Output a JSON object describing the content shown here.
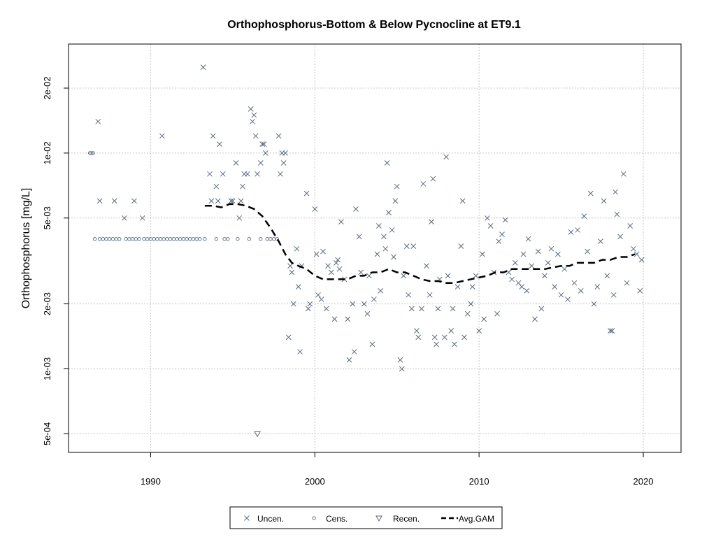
{
  "chart_data": {
    "type": "scatter",
    "title": "Orthophosphorus-Bottom & Below Pycnocline at ET9.1",
    "xlabel": "",
    "ylabel": "Orthophosphorus [mg/L]",
    "x_range": [
      1985,
      2022.3
    ],
    "y_range": [
      0.00041,
      0.032
    ],
    "y_scale": "log",
    "grid": true,
    "x_ticks": [
      1990,
      2000,
      2010,
      2020
    ],
    "x_tick_labels": [
      "1990",
      "2000",
      "2010",
      "2020"
    ],
    "y_ticks": [
      0.0005,
      0.001,
      0.002,
      0.005,
      0.01,
      0.02
    ],
    "y_tick_labels": [
      "5e-04",
      "1e-03",
      "2e-03",
      "5e-03",
      "1e-02",
      "2e-02"
    ],
    "legend_position": "bottom-center",
    "legend": [
      {
        "label": "Uncen.",
        "marker": "x"
      },
      {
        "label": "Cens.",
        "marker": "circle"
      },
      {
        "label": "Recen.",
        "marker": "triangle-down"
      },
      {
        "label": "Avg.GAM",
        "marker": "dashed-line"
      }
    ],
    "colors": {
      "points": "#5a6a80",
      "gam": "#000000",
      "grid": "#c8c8c8"
    },
    "series": [
      {
        "name": "Uncen.",
        "marker": "x",
        "points": [
          [
            1986.8,
            0.014
          ],
          [
            1986.9,
            0.006
          ],
          [
            1987.8,
            0.006
          ],
          [
            1988.4,
            0.005
          ],
          [
            1989.0,
            0.006
          ],
          [
            1989.5,
            0.005
          ],
          [
            1990.7,
            0.012
          ],
          [
            1993.2,
            0.025
          ],
          [
            1993.6,
            0.008
          ],
          [
            1993.7,
            0.006
          ],
          [
            1993.8,
            0.012
          ],
          [
            1994.0,
            0.007
          ],
          [
            1994.1,
            0.006
          ],
          [
            1994.2,
            0.011
          ],
          [
            1994.4,
            0.008
          ],
          [
            1994.9,
            0.006
          ],
          [
            1995.0,
            0.006
          ],
          [
            1995.2,
            0.009
          ],
          [
            1995.4,
            0.005
          ],
          [
            1995.5,
            0.006
          ],
          [
            1995.6,
            0.007
          ],
          [
            1995.7,
            0.008
          ],
          [
            1995.9,
            0.008
          ],
          [
            1996.1,
            0.016
          ],
          [
            1996.2,
            0.014
          ],
          [
            1996.3,
            0.015
          ],
          [
            1996.4,
            0.012
          ],
          [
            1996.5,
            0.008
          ],
          [
            1996.7,
            0.009
          ],
          [
            1996.8,
            0.011
          ],
          [
            1996.9,
            0.011
          ],
          [
            1997.0,
            0.01
          ],
          [
            1997.8,
            0.012
          ],
          [
            1997.9,
            0.008
          ],
          [
            1998.0,
            0.01
          ],
          [
            1998.1,
            0.009
          ],
          [
            1998.2,
            0.01
          ],
          [
            1998.4,
            0.0014
          ],
          [
            1998.5,
            0.003
          ],
          [
            1998.6,
            0.0028
          ],
          [
            1998.7,
            0.002
          ],
          [
            1998.9,
            0.0036
          ],
          [
            1999.0,
            0.0024
          ],
          [
            1999.1,
            0.0012
          ],
          [
            1999.2,
            0.003
          ],
          [
            1999.5,
            0.0065
          ],
          [
            1999.6,
            0.0019
          ],
          [
            1999.7,
            0.002
          ],
          [
            2000.0,
            0.0055
          ],
          [
            2000.1,
            0.0034
          ],
          [
            2000.2,
            0.0022
          ],
          [
            2000.4,
            0.0021
          ],
          [
            2000.5,
            0.0035
          ],
          [
            2000.7,
            0.0019
          ],
          [
            2000.8,
            0.003
          ],
          [
            2001.0,
            0.0028
          ],
          [
            2001.2,
            0.0017
          ],
          [
            2001.3,
            0.0031
          ],
          [
            2001.4,
            0.0032
          ],
          [
            2001.5,
            0.0029
          ],
          [
            2001.6,
            0.0048
          ],
          [
            2001.8,
            0.0026
          ],
          [
            2002.0,
            0.0017
          ],
          [
            2002.1,
            0.0011
          ],
          [
            2002.3,
            0.002
          ],
          [
            2002.4,
            0.0012
          ],
          [
            2002.5,
            0.0055
          ],
          [
            2002.7,
            0.0041
          ],
          [
            2002.8,
            0.0028
          ],
          [
            2003.0,
            0.002
          ],
          [
            2003.2,
            0.0018
          ],
          [
            2003.3,
            0.0027
          ],
          [
            2003.5,
            0.0013
          ],
          [
            2003.6,
            0.0021
          ],
          [
            2003.8,
            0.0034
          ],
          [
            2003.9,
            0.0046
          ],
          [
            2004.0,
            0.0023
          ],
          [
            2004.2,
            0.0041
          ],
          [
            2004.3,
            0.0036
          ],
          [
            2004.4,
            0.009
          ],
          [
            2004.5,
            0.0053
          ],
          [
            2004.7,
            0.0044
          ],
          [
            2004.8,
            0.0033
          ],
          [
            2004.9,
            0.006
          ],
          [
            2005.0,
            0.007
          ],
          [
            2005.2,
            0.0011
          ],
          [
            2005.3,
            0.001
          ],
          [
            2005.4,
            0.0027
          ],
          [
            2005.6,
            0.0037
          ],
          [
            2005.7,
            0.0022
          ],
          [
            2005.9,
            0.0019
          ],
          [
            2006.0,
            0.0037
          ],
          [
            2006.2,
            0.0015
          ],
          [
            2006.3,
            0.0014
          ],
          [
            2006.5,
            0.0019
          ],
          [
            2006.6,
            0.0072
          ],
          [
            2006.8,
            0.003
          ],
          [
            2007.0,
            0.0022
          ],
          [
            2007.1,
            0.0048
          ],
          [
            2007.2,
            0.0076
          ],
          [
            2007.3,
            0.0014
          ],
          [
            2007.4,
            0.0013
          ],
          [
            2007.5,
            0.0019
          ],
          [
            2007.6,
            0.0026
          ],
          [
            2007.9,
            0.0014
          ],
          [
            2008.0,
            0.0096
          ],
          [
            2008.1,
            0.0027
          ],
          [
            2008.3,
            0.0015
          ],
          [
            2008.4,
            0.0019
          ],
          [
            2008.5,
            0.0013
          ],
          [
            2008.7,
            0.0024
          ],
          [
            2008.9,
            0.0037
          ],
          [
            2009.0,
            0.006
          ],
          [
            2009.1,
            0.0014
          ],
          [
            2009.3,
            0.0018
          ],
          [
            2009.5,
            0.002
          ],
          [
            2009.6,
            0.0024
          ],
          [
            2009.8,
            0.0027
          ],
          [
            2010.0,
            0.0015
          ],
          [
            2010.2,
            0.0034
          ],
          [
            2010.3,
            0.0017
          ],
          [
            2010.5,
            0.005
          ],
          [
            2010.7,
            0.0046
          ],
          [
            2010.9,
            0.0028
          ],
          [
            2011.1,
            0.0018
          ],
          [
            2011.2,
            0.0039
          ],
          [
            2011.4,
            0.0042
          ],
          [
            2011.6,
            0.0049
          ],
          [
            2011.8,
            0.0028
          ],
          [
            2012.0,
            0.0026
          ],
          [
            2012.2,
            0.0031
          ],
          [
            2012.4,
            0.0025
          ],
          [
            2012.6,
            0.0024
          ],
          [
            2012.7,
            0.0034
          ],
          [
            2012.9,
            0.0023
          ],
          [
            2013.0,
            0.004
          ],
          [
            2013.2,
            0.003
          ],
          [
            2013.4,
            0.0017
          ],
          [
            2013.6,
            0.0035
          ],
          [
            2013.8,
            0.0019
          ],
          [
            2014.0,
            0.0027
          ],
          [
            2014.2,
            0.0031
          ],
          [
            2014.4,
            0.0036
          ],
          [
            2014.6,
            0.0024
          ],
          [
            2014.8,
            0.0034
          ],
          [
            2015.0,
            0.0022
          ],
          [
            2015.2,
            0.0029
          ],
          [
            2015.4,
            0.0021
          ],
          [
            2015.6,
            0.0043
          ],
          [
            2015.8,
            0.0025
          ],
          [
            2016.0,
            0.0044
          ],
          [
            2016.2,
            0.0023
          ],
          [
            2016.4,
            0.0051
          ],
          [
            2016.6,
            0.0035
          ],
          [
            2016.8,
            0.0065
          ],
          [
            2017.0,
            0.002
          ],
          [
            2017.2,
            0.0024
          ],
          [
            2017.4,
            0.0039
          ],
          [
            2017.6,
            0.006
          ],
          [
            2017.8,
            0.0027
          ],
          [
            2018.0,
            0.0015
          ],
          [
            2018.1,
            0.0015
          ],
          [
            2018.2,
            0.0022
          ],
          [
            2018.3,
            0.0066
          ],
          [
            2018.4,
            0.0052
          ],
          [
            2018.6,
            0.0041
          ],
          [
            2018.8,
            0.008
          ],
          [
            2019.0,
            0.0025
          ],
          [
            2019.2,
            0.0046
          ],
          [
            2019.4,
            0.0036
          ],
          [
            2019.6,
            0.0034
          ],
          [
            2019.8,
            0.0023
          ],
          [
            2019.9,
            0.0032
          ]
        ]
      },
      {
        "name": "Cens.",
        "marker": "circle",
        "points": [
          [
            1986.3,
            0.01
          ],
          [
            1986.4,
            0.01
          ],
          [
            1986.5,
            0.01
          ],
          [
            1986.6,
            0.004
          ],
          [
            1986.9,
            0.004
          ],
          [
            1987.1,
            0.004
          ],
          [
            1987.3,
            0.004
          ],
          [
            1987.5,
            0.004
          ],
          [
            1987.7,
            0.004
          ],
          [
            1987.9,
            0.004
          ],
          [
            1988.1,
            0.004
          ],
          [
            1988.5,
            0.004
          ],
          [
            1988.7,
            0.004
          ],
          [
            1988.9,
            0.004
          ],
          [
            1989.1,
            0.004
          ],
          [
            1989.3,
            0.004
          ],
          [
            1989.6,
            0.004
          ],
          [
            1989.8,
            0.004
          ],
          [
            1990.0,
            0.004
          ],
          [
            1990.2,
            0.004
          ],
          [
            1990.4,
            0.004
          ],
          [
            1990.6,
            0.004
          ],
          [
            1990.8,
            0.004
          ],
          [
            1991.0,
            0.004
          ],
          [
            1991.2,
            0.004
          ],
          [
            1991.4,
            0.004
          ],
          [
            1991.6,
            0.004
          ],
          [
            1991.8,
            0.004
          ],
          [
            1992.0,
            0.004
          ],
          [
            1992.2,
            0.004
          ],
          [
            1992.4,
            0.004
          ],
          [
            1992.6,
            0.004
          ],
          [
            1992.8,
            0.004
          ],
          [
            1993.0,
            0.004
          ],
          [
            1993.3,
            0.004
          ],
          [
            1994.0,
            0.004
          ],
          [
            1994.5,
            0.004
          ],
          [
            1994.7,
            0.004
          ],
          [
            1995.3,
            0.004
          ],
          [
            1996.0,
            0.004
          ],
          [
            1996.7,
            0.004
          ],
          [
            1997.1,
            0.004
          ],
          [
            1997.3,
            0.004
          ],
          [
            1997.5,
            0.004
          ],
          [
            1997.7,
            0.004
          ]
        ]
      },
      {
        "name": "Recen.",
        "marker": "triangle-down",
        "points": [
          [
            1996.5,
            0.0005
          ]
        ]
      },
      {
        "name": "Avg.GAM",
        "marker": "dashed-line",
        "points": [
          [
            1993.3,
            0.0057
          ],
          [
            1993.8,
            0.0057
          ],
          [
            1994.3,
            0.0056
          ],
          [
            1994.8,
            0.0058
          ],
          [
            1995.3,
            0.0058
          ],
          [
            1995.8,
            0.0057
          ],
          [
            1996.3,
            0.0055
          ],
          [
            1996.8,
            0.0051
          ],
          [
            1997.3,
            0.0045
          ],
          [
            1997.8,
            0.0039
          ],
          [
            1998.2,
            0.0034
          ],
          [
            1998.6,
            0.0031
          ],
          [
            1999.0,
            0.003
          ],
          [
            1999.5,
            0.0029
          ],
          [
            2000.0,
            0.0027
          ],
          [
            2000.5,
            0.0026
          ],
          [
            2001.0,
            0.0026
          ],
          [
            2001.5,
            0.0026
          ],
          [
            2002.0,
            0.0026
          ],
          [
            2002.5,
            0.0027
          ],
          [
            2003.0,
            0.0027
          ],
          [
            2003.5,
            0.0028
          ],
          [
            2004.0,
            0.0028
          ],
          [
            2004.5,
            0.0029
          ],
          [
            2005.0,
            0.0028
          ],
          [
            2005.5,
            0.0028
          ],
          [
            2006.0,
            0.0027
          ],
          [
            2006.5,
            0.0026
          ],
          [
            2007.0,
            0.00255
          ],
          [
            2007.5,
            0.00255
          ],
          [
            2008.0,
            0.0025
          ],
          [
            2008.5,
            0.0025
          ],
          [
            2009.0,
            0.00255
          ],
          [
            2009.5,
            0.0026
          ],
          [
            2010.0,
            0.00265
          ],
          [
            2010.5,
            0.0027
          ],
          [
            2011.0,
            0.0028
          ],
          [
            2011.5,
            0.0028
          ],
          [
            2012.0,
            0.0029
          ],
          [
            2012.5,
            0.0029
          ],
          [
            2013.0,
            0.0029
          ],
          [
            2013.5,
            0.0029
          ],
          [
            2014.0,
            0.0029
          ],
          [
            2014.5,
            0.00295
          ],
          [
            2015.0,
            0.003
          ],
          [
            2015.5,
            0.003
          ],
          [
            2016.0,
            0.0031
          ],
          [
            2016.5,
            0.0031
          ],
          [
            2017.0,
            0.0031
          ],
          [
            2017.5,
            0.0032
          ],
          [
            2018.0,
            0.0032
          ],
          [
            2018.5,
            0.0033
          ],
          [
            2019.0,
            0.0033
          ],
          [
            2019.5,
            0.0034
          ]
        ]
      }
    ]
  }
}
